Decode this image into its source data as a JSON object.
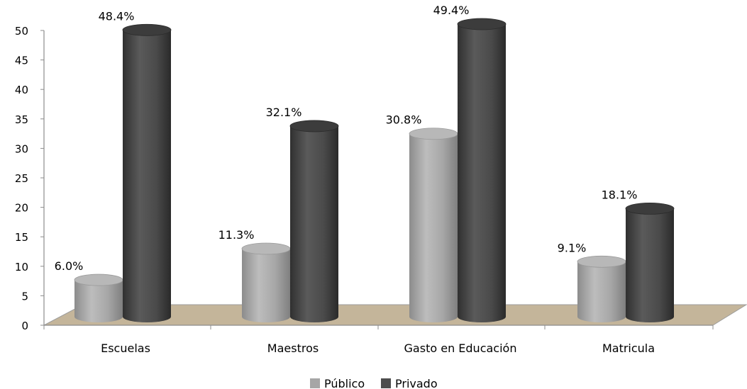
{
  "chart_data": {
    "type": "bar",
    "categories": [
      "Escuelas",
      "Maestros",
      "Gasto en Educación",
      "Matricula"
    ],
    "series": [
      {
        "name": "Público",
        "values": [
          6.0,
          11.3,
          30.8,
          9.1
        ],
        "labels": [
          "6.0%",
          "11.3%",
          "30.8%",
          "9.1%"
        ],
        "color": "#a6a6a6"
      },
      {
        "name": "Privado",
        "values": [
          48.4,
          32.1,
          49.4,
          18.1
        ],
        "labels": [
          "48.4%",
          "32.1%",
          "49.4%",
          "18.1%"
        ],
        "color": "#4d4d4d"
      }
    ],
    "yticks": [
      "0",
      "5",
      "10",
      "15",
      "20",
      "25",
      "30",
      "35",
      "40",
      "45",
      "50"
    ],
    "ylim": [
      0,
      50
    ],
    "title": "",
    "xlabel": "",
    "ylabel": "",
    "grid": false,
    "legend": "bottom",
    "floor_color": "#c4b59a"
  }
}
